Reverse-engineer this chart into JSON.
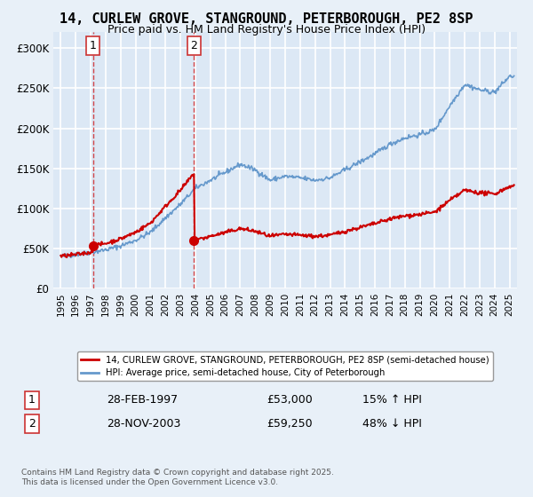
{
  "title": "14, CURLEW GROVE, STANGROUND, PETERBOROUGH, PE2 8SP",
  "subtitle": "Price paid vs. HM Land Registry's House Price Index (HPI)",
  "bg_color": "#e8f0f8",
  "plot_bg_color": "#dce8f5",
  "grid_color": "#ffffff",
  "red_line_color": "#cc0000",
  "blue_line_color": "#6699cc",
  "purchase1": {
    "date_num": 1997.15,
    "price": 53000,
    "label": "1"
  },
  "purchase2": {
    "date_num": 2003.91,
    "price": 59250,
    "label": "2"
  },
  "legend_red": "14, CURLEW GROVE, STANGROUND, PETERBOROUGH, PE2 8SP (semi-detached house)",
  "legend_blue": "HPI: Average price, semi-detached house, City of Peterborough",
  "table": [
    {
      "num": "1",
      "date": "28-FEB-1997",
      "price": "£53,000",
      "hpi": "15% ↑ HPI"
    },
    {
      "num": "2",
      "date": "28-NOV-2003",
      "price": "£59,250",
      "hpi": "48% ↓ HPI"
    }
  ],
  "footnote": "Contains HM Land Registry data © Crown copyright and database right 2025.\nThis data is licensed under the Open Government Licence v3.0.",
  "ylim": [
    0,
    320000
  ],
  "yticks": [
    0,
    50000,
    100000,
    150000,
    200000,
    250000,
    300000
  ],
  "xlim_start": 1994.5,
  "xlim_end": 2025.5
}
